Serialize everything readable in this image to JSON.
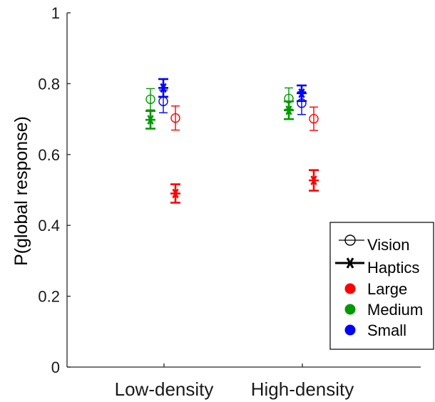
{
  "chart_data": {
    "type": "scatter",
    "title": "",
    "xlabel": "",
    "ylabel": "P(global response)",
    "ylim": [
      0,
      1
    ],
    "yticks": [
      "0",
      "0.2",
      "0.4",
      "0.6",
      "0.8",
      "1"
    ],
    "categories": [
      "Low-density",
      "High-density"
    ],
    "grid": false,
    "legend_position": "bottom-right",
    "legend": {
      "markers": [
        "Vision",
        "Haptics"
      ],
      "sizes": [
        "Large",
        "Medium",
        "Small"
      ]
    },
    "colors": {
      "Large": "#ff0000",
      "Medium": "#009900",
      "Small": "#0000ff",
      "axis": "#262626"
    },
    "series": [
      {
        "modality": "Vision",
        "size": "Medium",
        "values": [
          0.756,
          0.758
        ],
        "error": [
          0.03,
          0.03
        ]
      },
      {
        "modality": "Vision",
        "size": "Small",
        "values": [
          0.75,
          0.745
        ],
        "error": [
          0.032,
          0.032
        ]
      },
      {
        "modality": "Vision",
        "size": "Large",
        "values": [
          0.703,
          0.701
        ],
        "error": [
          0.034,
          0.033
        ]
      },
      {
        "modality": "Haptics",
        "size": "Medium",
        "values": [
          0.698,
          0.725
        ],
        "error": [
          0.025,
          0.025
        ]
      },
      {
        "modality": "Haptics",
        "size": "Small",
        "values": [
          0.788,
          0.773
        ],
        "error": [
          0.025,
          0.022
        ]
      },
      {
        "modality": "Haptics",
        "size": "Large",
        "values": [
          0.49,
          0.527
        ],
        "error": [
          0.026,
          0.029
        ]
      }
    ]
  }
}
